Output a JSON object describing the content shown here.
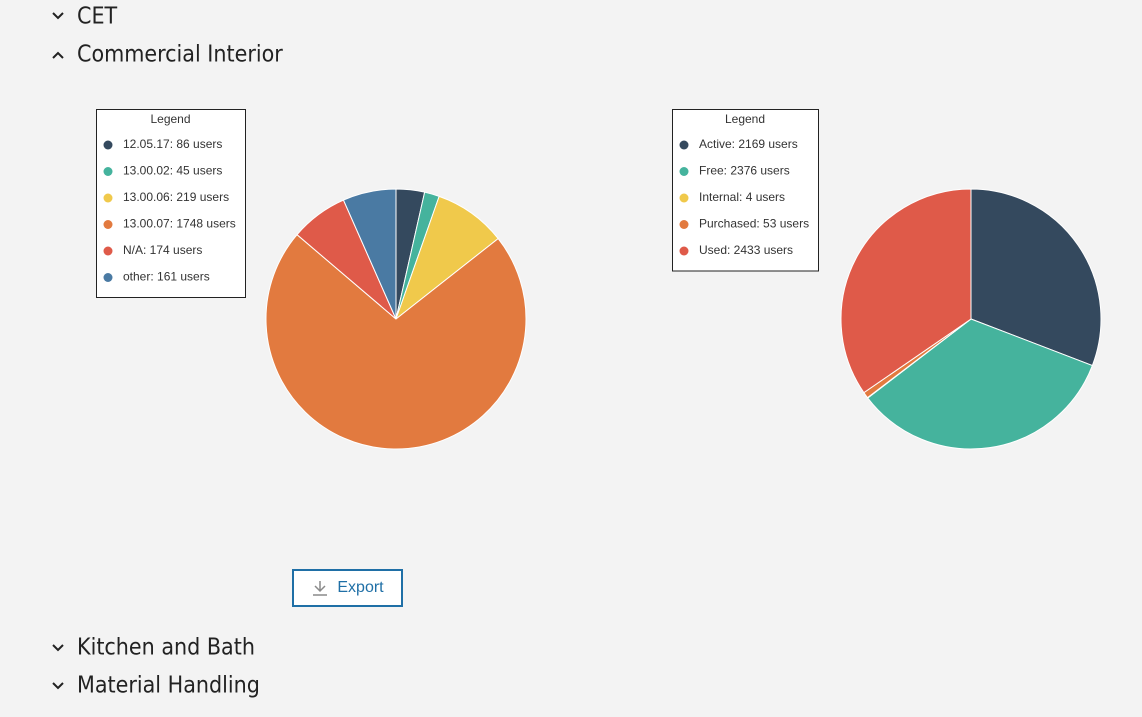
{
  "sections": [
    {
      "title": "CET"
    },
    {
      "title": "Commercial Interior"
    },
    {
      "title": "Kitchen and Bath"
    },
    {
      "title": "Material Handling"
    }
  ],
  "export_button": "Export",
  "chart_data": [
    {
      "type": "pie",
      "legend_title": "Legend",
      "categories": [
        "12.05.17: 86 users",
        "13.00.02: 45 users",
        "13.00.06: 219 users",
        "13.00.07: 1748 users",
        "N/A: 174 users",
        "other: 161 users"
      ],
      "values": [
        86,
        45,
        219,
        1748,
        174,
        161
      ],
      "colors": [
        "#34495e",
        "#45b39d",
        "#f0c94b",
        "#e27a3f",
        "#df5a49",
        "#4a7aa3"
      ]
    },
    {
      "type": "pie",
      "legend_title": "Legend",
      "categories": [
        "Active: 2169 users",
        "Free: 2376 users",
        "Internal: 4 users",
        "Purchased: 53 users",
        "Used: 2433 users"
      ],
      "values": [
        2169,
        2376,
        4,
        53,
        2433
      ],
      "colors": [
        "#34495e",
        "#45b39d",
        "#f0c94b",
        "#e27a3f",
        "#df5a49"
      ]
    }
  ]
}
